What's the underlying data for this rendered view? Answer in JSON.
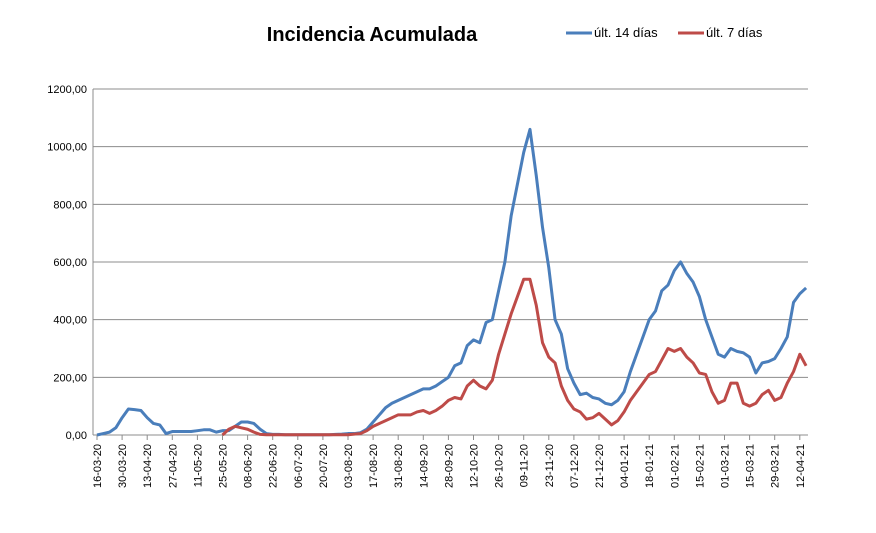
{
  "chart_data": {
    "type": "line",
    "title": "Incidencia Acumulada",
    "categories": [
      "16-03-20",
      null,
      null,
      null,
      "30-03-20",
      null,
      null,
      null,
      "13-04-20",
      null,
      null,
      null,
      "27-04-20",
      null,
      null,
      null,
      "11-05-20",
      null,
      null,
      null,
      "25-05-20",
      null,
      null,
      null,
      "08-06-20",
      null,
      null,
      null,
      "22-06-20",
      null,
      null,
      null,
      "06-07-20",
      null,
      null,
      null,
      "20-07-20",
      null,
      null,
      null,
      "03-08-20",
      null,
      null,
      null,
      "17-08-20",
      null,
      null,
      null,
      "31-08-20",
      null,
      null,
      null,
      "14-09-20",
      null,
      null,
      null,
      "28-09-20",
      null,
      null,
      null,
      "12-10-20",
      null,
      null,
      null,
      "26-10-20",
      null,
      null,
      null,
      "09-11-20",
      null,
      null,
      null,
      "23-11-20",
      null,
      null,
      null,
      "07-12-20",
      null,
      null,
      null,
      "21-12-20",
      null,
      null,
      null,
      "04-01-21",
      null,
      null,
      null,
      "18-01-21",
      null,
      null,
      null,
      "01-02-21",
      null,
      null,
      null,
      "15-02-21",
      null,
      null,
      null,
      "01-03-21",
      null,
      null,
      null,
      "15-03-21",
      null,
      null,
      null,
      "29-03-21",
      null,
      null,
      null,
      "12-04-21",
      null
    ],
    "series": [
      {
        "name": "últ. 14 días",
        "color": "#4a7ebb",
        "values": [
          0,
          5,
          10,
          25,
          60,
          90,
          88,
          85,
          60,
          40,
          35,
          5,
          12,
          12,
          12,
          12,
          15,
          18,
          18,
          10,
          15,
          15,
          30,
          45,
          45,
          40,
          20,
          5,
          2,
          2,
          1,
          1,
          1,
          1,
          1,
          1,
          1,
          1,
          2,
          3,
          5,
          5,
          8,
          20,
          45,
          70,
          95,
          110,
          120,
          130,
          140,
          150,
          160,
          160,
          170,
          185,
          200,
          240,
          250,
          310,
          330,
          320,
          390,
          400,
          500,
          600,
          760,
          870,
          980,
          1060,
          900,
          720,
          580,
          400,
          350,
          230,
          180,
          140,
          145,
          130,
          125,
          110,
          105,
          120,
          150,
          220,
          280,
          340,
          400,
          430,
          500,
          520,
          570,
          600,
          560,
          530,
          480,
          400,
          340,
          280,
          270,
          300,
          290,
          285,
          270,
          215,
          250,
          255,
          265,
          300,
          340,
          460,
          490,
          510
        ]
      },
      {
        "name": "últ. 7 días",
        "color": "#be4b48",
        "values": [
          null,
          null,
          null,
          null,
          null,
          null,
          null,
          null,
          null,
          null,
          null,
          null,
          null,
          null,
          null,
          null,
          null,
          null,
          null,
          null,
          0,
          20,
          30,
          25,
          20,
          10,
          2,
          1,
          1,
          1,
          1,
          1,
          1,
          1,
          1,
          1,
          1,
          1,
          1,
          1,
          1,
          3,
          5,
          15,
          30,
          40,
          50,
          60,
          70,
          70,
          70,
          80,
          85,
          75,
          85,
          100,
          120,
          130,
          125,
          170,
          190,
          170,
          160,
          190,
          280,
          350,
          420,
          480,
          540,
          540,
          450,
          320,
          270,
          250,
          170,
          120,
          90,
          80,
          55,
          60,
          75,
          55,
          35,
          50,
          80,
          120,
          150,
          180,
          210,
          220,
          260,
          300,
          290,
          300,
          270,
          250,
          215,
          210,
          150,
          110,
          120,
          180,
          180,
          110,
          100,
          110,
          140,
          155,
          120,
          130,
          180,
          220,
          280,
          240
        ]
      }
    ],
    "ylim": [
      0,
      1200
    ],
    "yticks": [
      {
        "value": 0,
        "label": "0,00"
      },
      {
        "value": 200,
        "label": "200,00"
      },
      {
        "value": 400,
        "label": "400,00"
      },
      {
        "value": 600,
        "label": "600,00"
      },
      {
        "value": 800,
        "label": "800,00"
      },
      {
        "value": 1000,
        "label": "1000,00"
      },
      {
        "value": 1200,
        "label": "1200,00"
      }
    ],
    "grid": true,
    "legend": "top-right"
  }
}
